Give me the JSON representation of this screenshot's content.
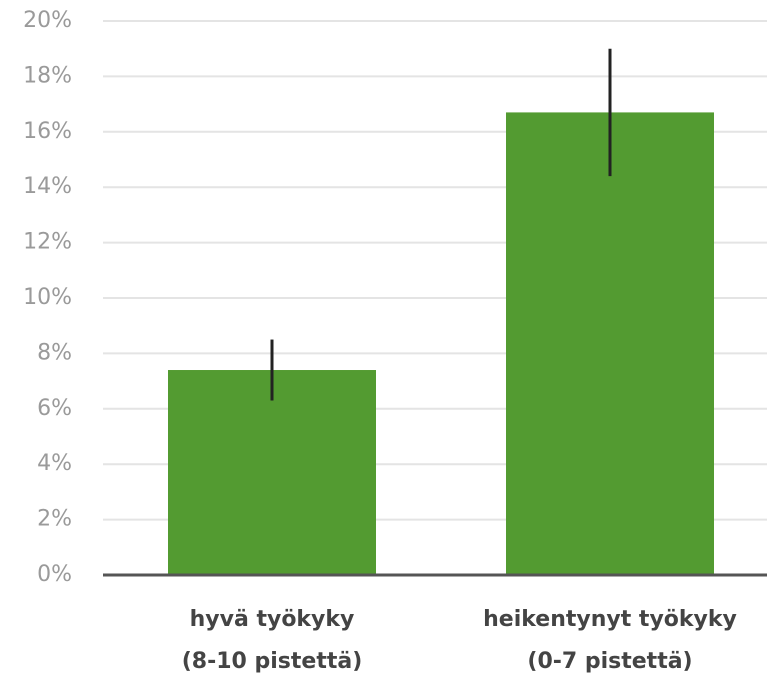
{
  "chart_data": {
    "type": "bar",
    "categories": [
      [
        "hyvä työkyky",
        "(8-10 pistettä)"
      ],
      [
        "heikentynyt työkyky",
        "(0-7 pistettä)"
      ]
    ],
    "values": [
      7.4,
      16.7
    ],
    "error_low": [
      6.3,
      14.4
    ],
    "error_high": [
      8.5,
      19.0
    ],
    "color": "#539b31",
    "error_color": "#222222",
    "ylim": [
      0,
      20
    ],
    "yticks": [
      {
        "value": 0,
        "label": "0%"
      },
      {
        "value": 2,
        "label": "2%"
      },
      {
        "value": 4,
        "label": "4%"
      },
      {
        "value": 6,
        "label": "6%"
      },
      {
        "value": 8,
        "label": "8%"
      },
      {
        "value": 10,
        "label": "10%"
      },
      {
        "value": 12,
        "label": "12%"
      },
      {
        "value": 14,
        "label": "14%"
      },
      {
        "value": 16,
        "label": "16%"
      },
      {
        "value": 18,
        "label": "18%"
      },
      {
        "value": 20,
        "label": "20%"
      }
    ],
    "grid": true
  }
}
